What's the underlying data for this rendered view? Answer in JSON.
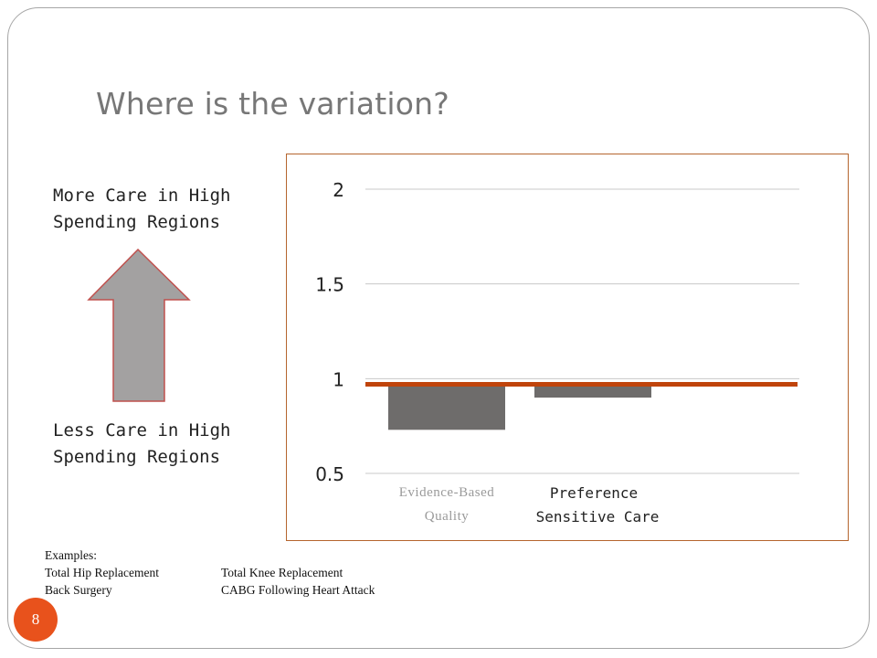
{
  "slide": {
    "title": "Where is the variation?",
    "page_number": "8"
  },
  "left_panel": {
    "more_care_label": "More Care in High Spending Regions",
    "less_care_label": "Less Care in High Spending Regions",
    "arrow_icon": "up-arrow-icon"
  },
  "examples": {
    "heading": "Examples:",
    "items": [
      [
        "Total Hip Replacement",
        "Total Knee Replacement"
      ],
      [
        "Back Surgery",
        "CABG Following Heart Attack"
      ]
    ]
  },
  "chart_data": {
    "type": "bar",
    "categories": [
      "Evidence-Based Quality",
      "Preference Sensitive Care"
    ],
    "values": [
      0.73,
      0.9
    ],
    "baseline": 0.97,
    "reference_line": 0.97,
    "ylim": [
      0.5,
      2
    ],
    "yticks": [
      "0.5",
      "1",
      "1.5",
      "2"
    ],
    "grid": true,
    "colors": {
      "bar": "#6e6c6b",
      "reference_line": "#c0440b",
      "grid": "#c8c8c8",
      "frame": "#b5652e"
    }
  },
  "colors": {
    "badge": "#e8521c",
    "arrow_fill": "#a3a1a1",
    "arrow_stroke": "#c0504d",
    "title": "#777777"
  }
}
